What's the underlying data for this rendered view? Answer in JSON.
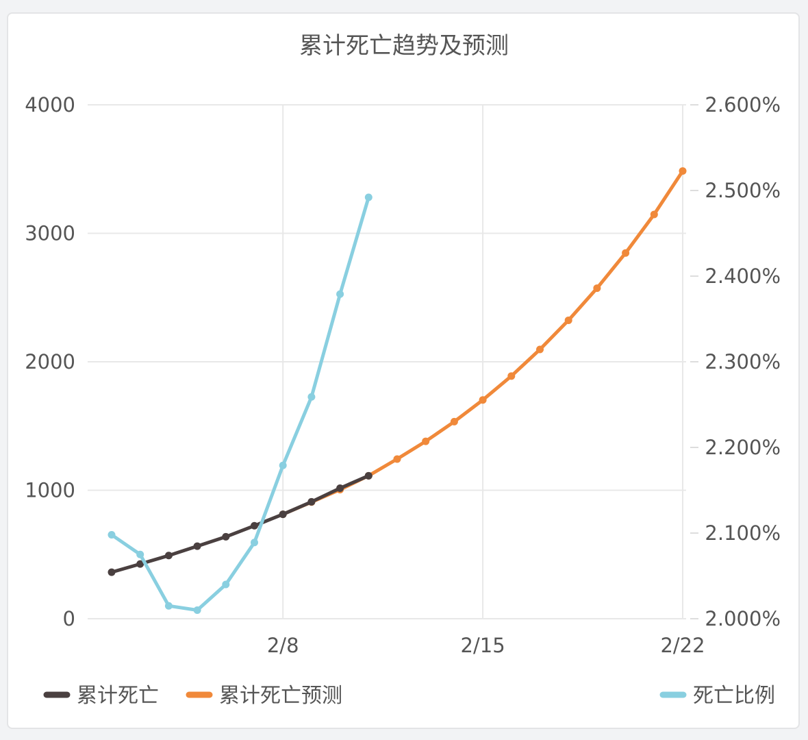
{
  "chart_data": {
    "type": "line",
    "title": "累计死亡趋势及预测",
    "x": [
      "2/2",
      "2/3",
      "2/4",
      "2/5",
      "2/6",
      "2/7",
      "2/8",
      "2/9",
      "2/10",
      "2/11",
      "2/12",
      "2/13",
      "2/14",
      "2/15",
      "2/16",
      "2/17",
      "2/18",
      "2/19",
      "2/20",
      "2/21",
      "2/22"
    ],
    "x_ticks": [
      "2/8",
      "2/15",
      "2/22"
    ],
    "y_left": {
      "ticks": [
        "0",
        "1000",
        "2000",
        "3000",
        "4000"
      ],
      "ylim": [
        0,
        4000
      ]
    },
    "y_right": {
      "ticks": [
        "2.000%",
        "2.100%",
        "2.200%",
        "2.300%",
        "2.400%",
        "2.500%",
        "2.600%"
      ],
      "ylim": [
        2.0,
        2.6
      ],
      "unit": "%"
    },
    "grid": true,
    "legend_position": "bottom",
    "series": [
      {
        "name": "累计死亡",
        "axis": "left",
        "color": "#4a4040",
        "values": [
          362,
          426,
          492,
          565,
          638,
          724,
          813,
          910,
          1016,
          1113,
          null,
          null,
          null,
          null,
          null,
          null,
          null,
          null,
          null,
          null,
          null
        ]
      },
      {
        "name": "累计死亡预测",
        "axis": "left",
        "color": "#f0893a",
        "values": [
          null,
          null,
          null,
          null,
          null,
          null,
          813,
          908,
          1005,
          1113,
          1243,
          1381,
          1534,
          1703,
          1889,
          2096,
          2323,
          2573,
          2847,
          3147,
          3485
        ]
      },
      {
        "name": "死亡比例",
        "axis": "right",
        "color": "#89cfe0",
        "values": [
          2.098,
          2.075,
          2.015,
          2.01,
          2.04,
          2.089,
          2.179,
          2.259,
          2.379,
          2.492,
          null,
          null,
          null,
          null,
          null,
          null,
          null,
          null,
          null,
          null,
          null
        ]
      }
    ]
  }
}
